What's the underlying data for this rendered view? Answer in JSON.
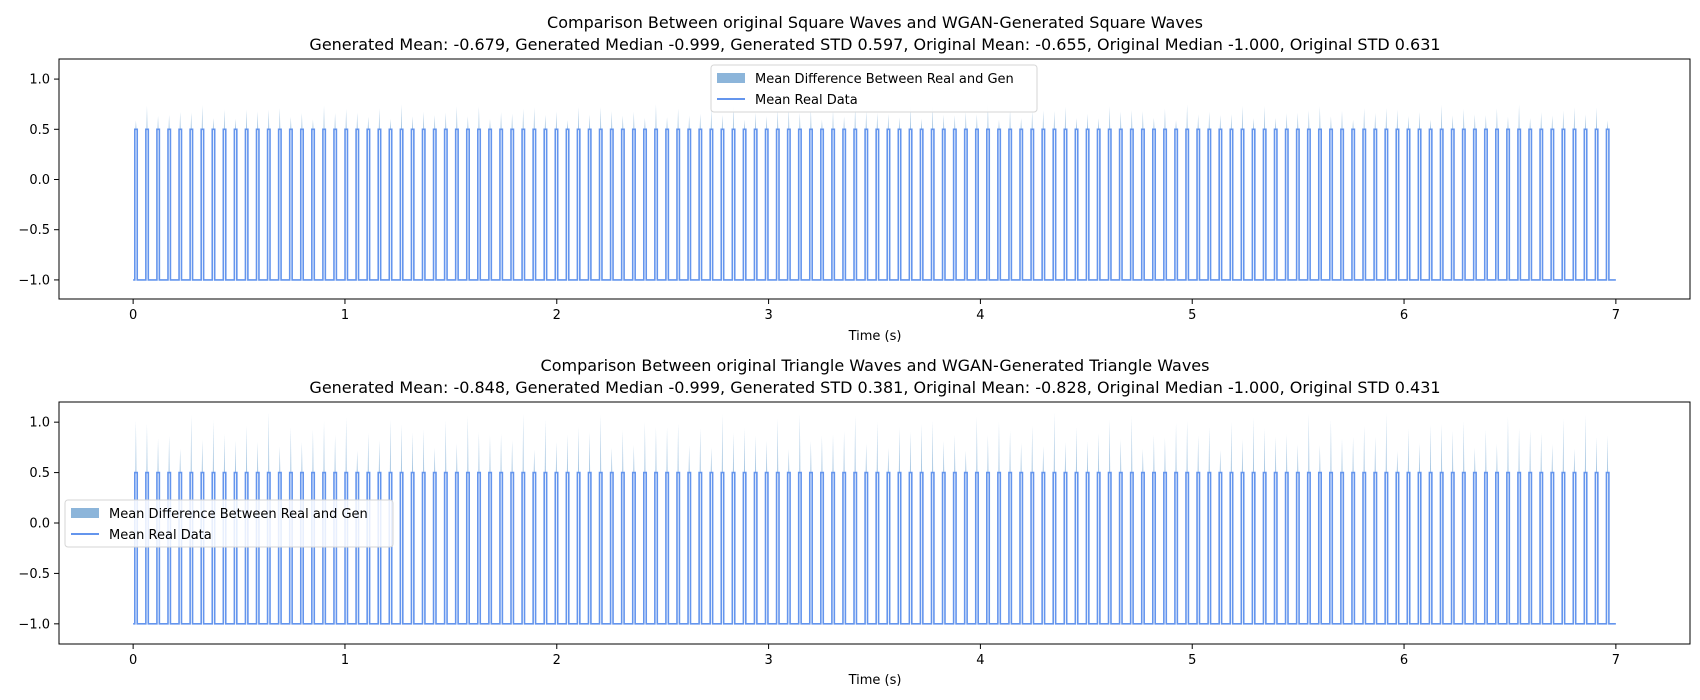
{
  "chart_data": [
    {
      "type": "line",
      "title": "Comparison Between original Square Waves and WGAN-Generated Square Waves",
      "subtitle": "Generated Mean: -0.679, Generated Median -0.999, Generated STD 0.597, Original Mean: -0.655, Original Median -1.000, Original STD 0.631",
      "xlabel": "Time (s)",
      "ylabel": "",
      "xlim": [
        -0.35,
        7.35
      ],
      "ylim": [
        -1.19,
        1.2
      ],
      "xticks": [
        "0",
        "1",
        "2",
        "3",
        "4",
        "5",
        "6",
        "7"
      ],
      "yticks": [
        "1.0",
        "0.5",
        "0.0",
        "−0.5",
        "−1.0"
      ],
      "grid": false,
      "legend_position": "top-center",
      "wave": {
        "kind": "square",
        "baseline": -1.0,
        "peak": 0.5,
        "pulses": 134,
        "t_start": 0.0,
        "t_end": 7.0,
        "diff_max": 0.75
      },
      "series": [
        {
          "name": "Mean Difference Between Real and Gen",
          "kind": "fill"
        },
        {
          "name": "Mean Real Data",
          "kind": "line"
        }
      ]
    },
    {
      "type": "line",
      "title": "Comparison Between original Triangle Waves and WGAN-Generated Triangle Waves",
      "subtitle": "Generated Mean: -0.848, Generated Median -0.999, Generated STD 0.381, Original Mean: -0.828, Original Median -1.000, Original STD 0.431",
      "xlabel": "Time (s)",
      "ylabel": "",
      "xlim": [
        -0.35,
        7.35
      ],
      "ylim": [
        -1.2,
        1.2
      ],
      "xticks": [
        "0",
        "1",
        "2",
        "3",
        "4",
        "5",
        "6",
        "7"
      ],
      "yticks": [
        "1.0",
        "0.5",
        "0.0",
        "−0.5",
        "−1.0"
      ],
      "grid": false,
      "legend_position": "center-left",
      "wave": {
        "kind": "spike",
        "baseline": -1.0,
        "peak": 0.5,
        "pulses": 134,
        "t_start": 0.0,
        "t_end": 7.0,
        "diff_max": 1.1
      },
      "series": [
        {
          "name": "Mean Difference Between Real and Gen",
          "kind": "fill"
        },
        {
          "name": "Mean Real Data",
          "kind": "line"
        }
      ]
    }
  ],
  "colors": {
    "line": "#6495ed",
    "fill": "#8cb5da",
    "axis": "#000000"
  }
}
